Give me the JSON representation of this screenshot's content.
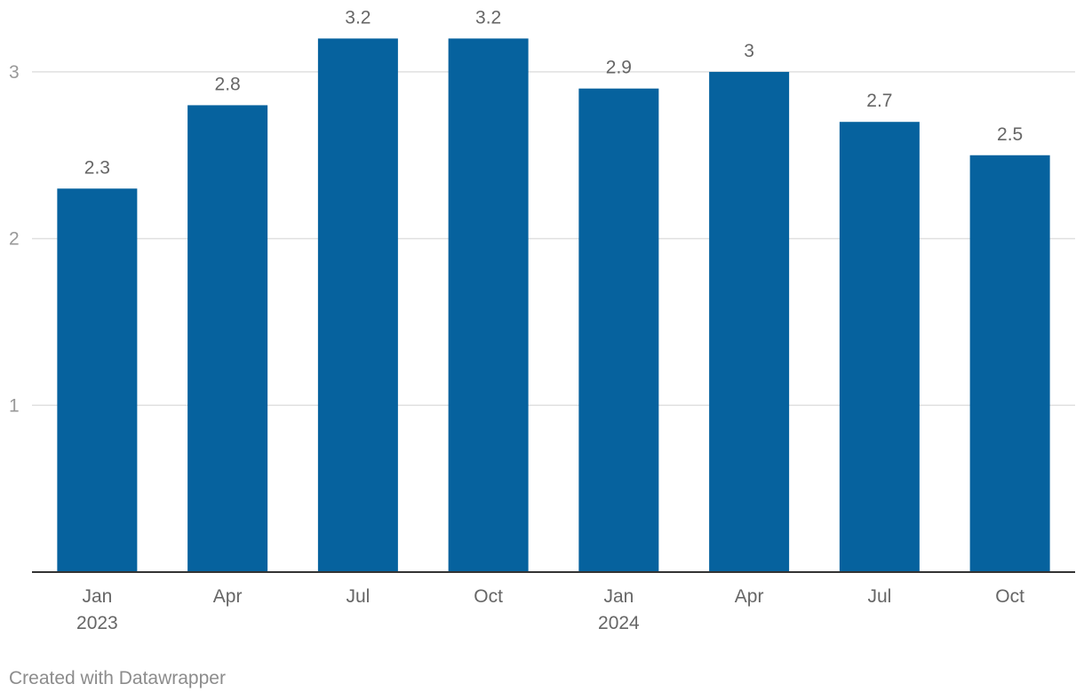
{
  "chart_data": {
    "type": "bar",
    "categories": [
      {
        "label": "Jan",
        "sublabel": "2023"
      },
      {
        "label": "Apr",
        "sublabel": ""
      },
      {
        "label": "Jul",
        "sublabel": ""
      },
      {
        "label": "Oct",
        "sublabel": ""
      },
      {
        "label": "Jan",
        "sublabel": "2024"
      },
      {
        "label": "Apr",
        "sublabel": ""
      },
      {
        "label": "Jul",
        "sublabel": ""
      },
      {
        "label": "Oct",
        "sublabel": ""
      }
    ],
    "values": [
      2.3,
      2.8,
      3.2,
      3.2,
      2.9,
      3,
      2.7,
      2.5
    ],
    "value_labels": [
      "2.3",
      "2.8",
      "3.2",
      "3.2",
      "2.9",
      "3",
      "2.7",
      "2.5"
    ],
    "y_ticks": [
      {
        "value": 1,
        "label": "1"
      },
      {
        "value": 2,
        "label": "2"
      },
      {
        "value": 3,
        "label": "3"
      }
    ],
    "ylim": [
      0,
      3.2
    ],
    "grid": true,
    "colors": {
      "bar": "#06629e",
      "grid": "#e0e0e0",
      "baseline": "#333333",
      "tick_text": "#999999",
      "axis_text": "#666666",
      "value_text": "#666666"
    }
  },
  "footer": {
    "credit": "Created with Datawrapper"
  }
}
